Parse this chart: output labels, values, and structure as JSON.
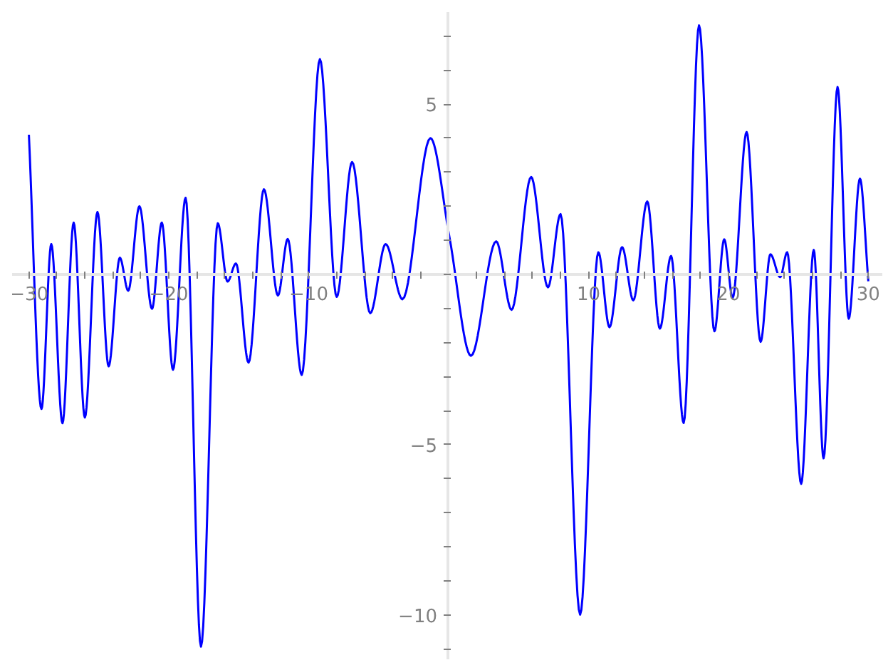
{
  "chart_data": {
    "type": "line",
    "x": [
      -30,
      -29.1,
      -28.4,
      -27.6,
      -26.8,
      -26.0,
      -25.1,
      -24.3,
      -23.5,
      -22.9,
      -22.1,
      -21.2,
      -20.5,
      -19.7,
      -18.8,
      -17.7,
      -16.5,
      -15.8,
      -15.2,
      -14.3,
      -13.2,
      -12.2,
      -11.5,
      -10.5,
      -9.2,
      -8.0,
      -6.9,
      -5.6,
      -4.5,
      -3.3,
      -1.3,
      0.07,
      1.6,
      3.4,
      4.5,
      5.9,
      7.1,
      8.0,
      9.4,
      10.7,
      11.5,
      12.4,
      13.2,
      14.2,
      15.1,
      15.9,
      16.8,
      17.9,
      19.0,
      19.7,
      20.3,
      21.3,
      22.3,
      23.0,
      23.7,
      24.2,
      25.2,
      26.1,
      26.8,
      27.8,
      28.6,
      29.4,
      30.0
    ],
    "series": [
      {
        "color": "#0000ff",
        "values": [
          4.1,
          -3.95,
          0.89,
          -4.37,
          1.52,
          -4.2,
          1.83,
          -2.7,
          0.49,
          -0.48,
          2.0,
          -1.01,
          1.52,
          -2.8,
          2.25,
          -10.93,
          1.5,
          -0.21,
          0.32,
          -2.59,
          2.5,
          -0.62,
          1.04,
          -2.95,
          6.32,
          -0.66,
          3.3,
          -1.14,
          0.89,
          -0.73,
          4.0,
          1.07,
          -2.39,
          0.97,
          -1.04,
          2.86,
          -0.38,
          1.77,
          -9.99,
          0.65,
          -1.55,
          0.8,
          -0.76,
          2.14,
          -1.59,
          0.54,
          -4.36,
          7.31,
          -1.67,
          1.03,
          -0.69,
          4.18,
          -1.98,
          0.59,
          -0.08,
          0.65,
          -6.15,
          0.72,
          -5.4,
          5.5,
          -1.3,
          2.81,
          -0.2
        ]
      }
    ],
    "xlim": [
      -31.2,
      31
    ],
    "ylim": [
      -11.3,
      7.7
    ],
    "xticks": [
      -30,
      {
        "value": -28,
        "label": null
      },
      {
        "value": -26,
        "label": null
      },
      {
        "value": -24,
        "label": null
      },
      {
        "value": -22,
        "label": null
      },
      -20,
      {
        "value": -18,
        "label": null
      },
      {
        "value": -16,
        "label": null
      },
      {
        "value": -14,
        "label": null
      },
      {
        "value": -12,
        "label": null
      },
      -10,
      {
        "value": -8,
        "label": null
      },
      {
        "value": -6,
        "label": null
      },
      {
        "value": -4,
        "label": null
      },
      {
        "value": -2,
        "label": null
      },
      {
        "value": 0,
        "label": null
      },
      {
        "value": 2,
        "label": null
      },
      {
        "value": 4,
        "label": null
      },
      {
        "value": 6,
        "label": null
      },
      {
        "value": 8,
        "label": null
      },
      10,
      {
        "value": 12,
        "label": null
      },
      {
        "value": 14,
        "label": null
      },
      {
        "value": 16,
        "label": null
      },
      {
        "value": 18,
        "label": null
      },
      20,
      {
        "value": 22,
        "label": null
      },
      {
        "value": 24,
        "label": null
      },
      {
        "value": 26,
        "label": null
      },
      {
        "value": 28,
        "label": null
      },
      30
    ],
    "yticks": [
      {
        "value": -11,
        "label": null
      },
      -10,
      {
        "value": -9,
        "label": null
      },
      {
        "value": -8,
        "label": null
      },
      {
        "value": -7,
        "label": null
      },
      {
        "value": -6,
        "label": null
      },
      -5,
      {
        "value": -4,
        "label": null
      },
      {
        "value": -3,
        "label": null
      },
      {
        "value": -2,
        "label": null
      },
      {
        "value": -1,
        "label": null
      },
      {
        "value": 0,
        "label": null
      },
      {
        "value": 1,
        "label": null
      },
      {
        "value": 2,
        "label": null
      },
      {
        "value": 3,
        "label": null
      },
      {
        "value": 4,
        "label": null
      },
      5,
      {
        "value": 6,
        "label": null
      },
      {
        "value": 7,
        "label": null
      }
    ],
    "grid": false,
    "line_style": "solid"
  }
}
